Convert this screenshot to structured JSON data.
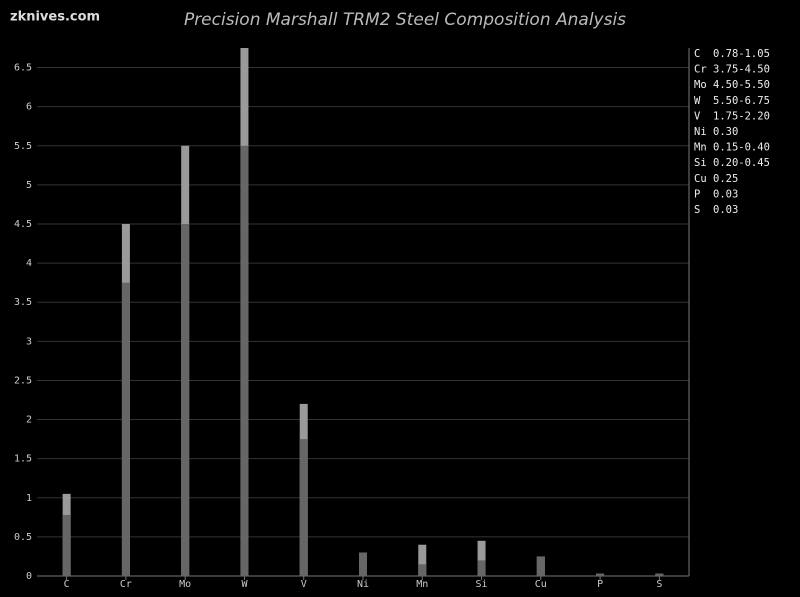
{
  "site": "zknives.com",
  "chart_data": {
    "type": "range-bar",
    "title": "Precision Marshall TRM2 Steel Composition Analysis",
    "categories": [
      "C",
      "Cr",
      "Mo",
      "W",
      "V",
      "Ni",
      "Mn",
      "Si",
      "Cu",
      "P",
      "S"
    ],
    "series": [
      {
        "name": "max",
        "color": "#9a9a9a",
        "values": [
          1.05,
          4.5,
          5.5,
          6.75,
          2.2,
          0.3,
          0.4,
          0.45,
          0.25,
          0.03,
          0.03
        ]
      },
      {
        "name": "min",
        "color": "#666666",
        "values": [
          0.78,
          3.75,
          4.5,
          5.5,
          1.75,
          0.3,
          0.15,
          0.2,
          0.25,
          0.03,
          0.03
        ]
      }
    ],
    "ylim": [
      0,
      6.75
    ],
    "yticks": [
      0,
      0.5,
      1,
      1.5,
      2,
      2.5,
      3,
      3.5,
      4,
      4.5,
      5,
      5.5,
      6,
      6.5
    ],
    "grid": true,
    "legend": [
      {
        "element": "C",
        "range": "0.78-1.05"
      },
      {
        "element": "Cr",
        "range": "3.75-4.50"
      },
      {
        "element": "Mo",
        "range": "4.50-5.50"
      },
      {
        "element": "W",
        "range": "5.50-6.75"
      },
      {
        "element": "V",
        "range": "1.75-2.20"
      },
      {
        "element": "Ni",
        "range": "0.30"
      },
      {
        "element": "Mn",
        "range": "0.15-0.40"
      },
      {
        "element": "Si",
        "range": "0.20-0.45"
      },
      {
        "element": "Cu",
        "range": "0.25"
      },
      {
        "element": "P",
        "range": "0.03"
      },
      {
        "element": "S",
        "range": "0.03"
      }
    ]
  }
}
